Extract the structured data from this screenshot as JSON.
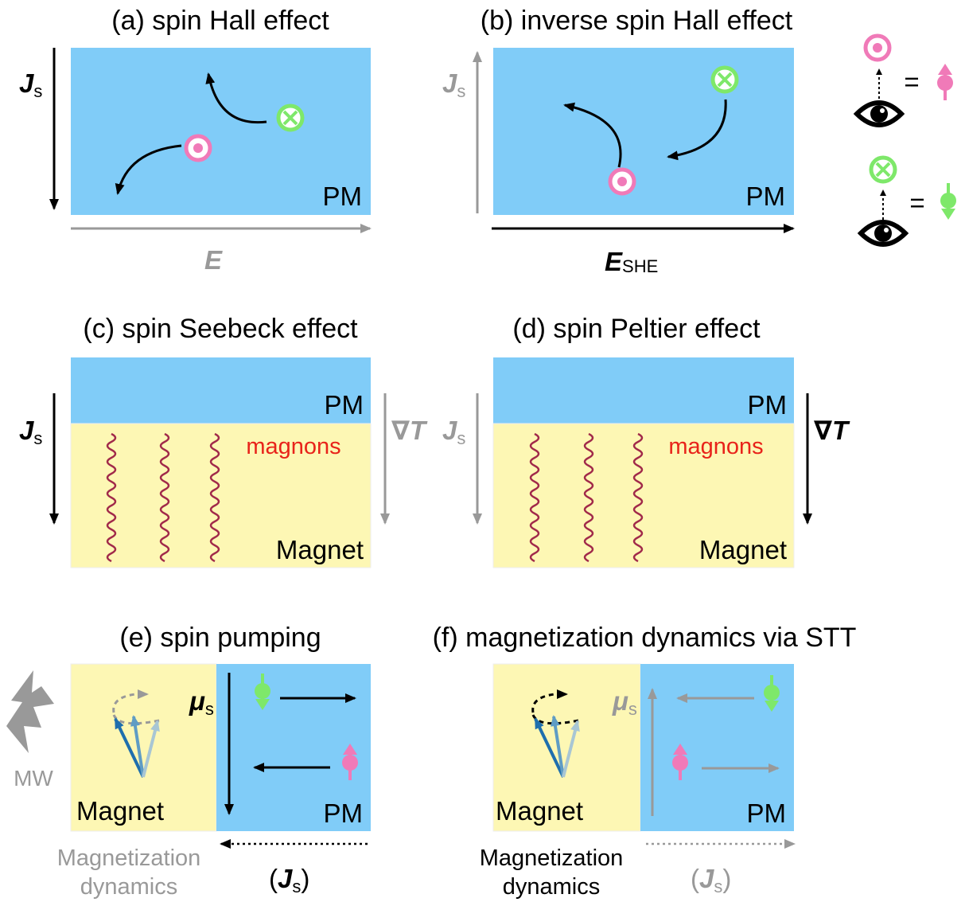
{
  "panels": [
    {
      "title": "(a) spin Hall effect",
      "js": "J",
      "js_sub": "s",
      "e": "E",
      "pm": "PM"
    },
    {
      "title": "(b) inverse spin Hall effect",
      "js": "J",
      "js_sub": "s",
      "e": "E",
      "e_sub": "SHE",
      "pm": "PM"
    },
    {
      "title": "(c) spin Seebeck effect",
      "js": "J",
      "js_sub": "s",
      "grad": "∇T",
      "pm": "PM",
      "magnons": "magnons",
      "magnet": "Magnet"
    },
    {
      "title": "(d) spin Peltier effect",
      "js": "J",
      "js_sub": "s",
      "grad": "∇T",
      "pm": "PM",
      "magnons": "magnons",
      "magnet": "Magnet"
    },
    {
      "title": "(e) spin pumping",
      "mw": "MW",
      "mu": "μ",
      "mu_sub": "s",
      "magnet": "Magnet",
      "pm": "PM",
      "dynamics": [
        "Magnetization",
        "dynamics"
      ],
      "open": "(",
      "js": "J",
      "js_sub": "s",
      "close": ")"
    },
    {
      "title": "(f) magnetization dynamics via STT",
      "mu": "μ",
      "mu_sub": "s",
      "magnet": "Magnet",
      "pm": "PM",
      "dynamics": [
        "Magnetization",
        "dynamics"
      ],
      "open": "(",
      "js": "J",
      "js_sub": "s",
      "close": ")"
    }
  ],
  "legend": {
    "equals": [
      "=",
      "="
    ]
  }
}
